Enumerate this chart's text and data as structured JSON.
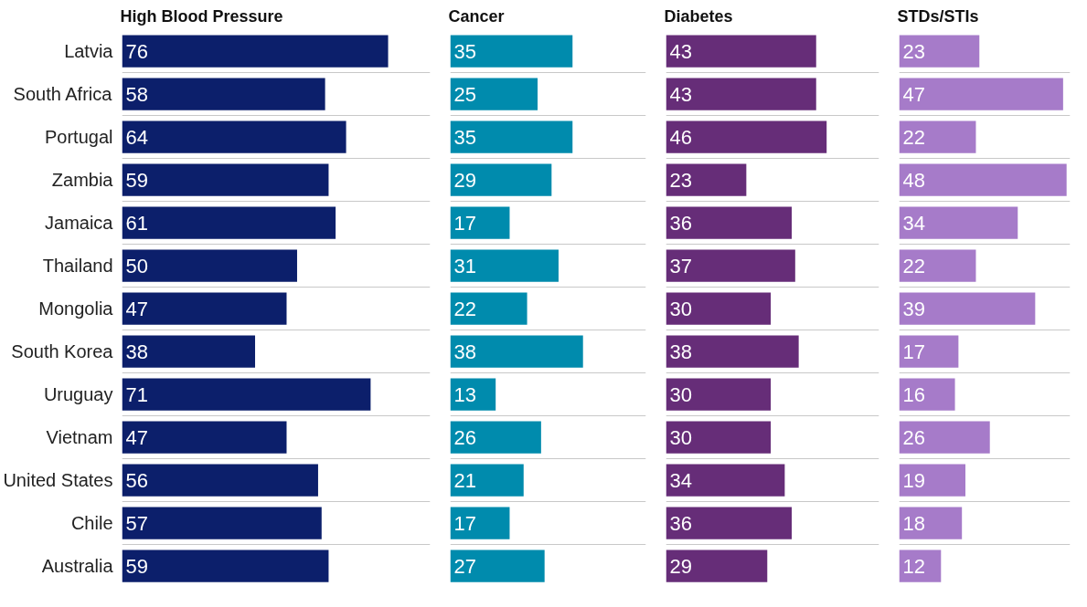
{
  "chart_data": [
    {
      "type": "bar",
      "orientation": "horizontal",
      "title": "High Blood Pressure",
      "categories": [
        "Latvia",
        "South Africa",
        "Portugal",
        "Zambia",
        "Jamaica",
        "Thailand",
        "Mongolia",
        "South Korea",
        "Uruguay",
        "Vietnam",
        "United States",
        "Chile",
        "Australia"
      ],
      "values": [
        76,
        58,
        64,
        59,
        61,
        50,
        47,
        38,
        71,
        47,
        56,
        57,
        59
      ],
      "color": "#0c1f6b",
      "xlim": [
        0,
        88
      ],
      "data_labels": true,
      "grid": "y",
      "tick_labels": "y"
    },
    {
      "type": "bar",
      "orientation": "horizontal",
      "title": "Cancer",
      "categories": [
        "Latvia",
        "South Africa",
        "Portugal",
        "Zambia",
        "Jamaica",
        "Thailand",
        "Mongolia",
        "South Korea",
        "Uruguay",
        "Vietnam",
        "United States",
        "Chile",
        "Australia"
      ],
      "values": [
        35,
        25,
        35,
        29,
        17,
        31,
        22,
        38,
        13,
        26,
        21,
        17,
        27
      ],
      "color": "#008bad",
      "xlim": [
        0,
        56
      ],
      "data_labels": true,
      "grid": "y",
      "tick_labels": false
    },
    {
      "type": "bar",
      "orientation": "horizontal",
      "title": "Diabetes",
      "categories": [
        "Latvia",
        "South Africa",
        "Portugal",
        "Zambia",
        "Jamaica",
        "Thailand",
        "Mongolia",
        "South Korea",
        "Uruguay",
        "Vietnam",
        "United States",
        "Chile",
        "Australia"
      ],
      "values": [
        43,
        43,
        46,
        23,
        36,
        37,
        30,
        38,
        30,
        30,
        34,
        36,
        29
      ],
      "color": "#662d78",
      "xlim": [
        0,
        61
      ],
      "data_labels": true,
      "grid": "y",
      "tick_labels": false
    },
    {
      "type": "bar",
      "orientation": "horizontal",
      "title": "STDs/STIs",
      "categories": [
        "Latvia",
        "South Africa",
        "Portugal",
        "Zambia",
        "Jamaica",
        "Thailand",
        "Mongolia",
        "South Korea",
        "Uruguay",
        "Vietnam",
        "United States",
        "Chile",
        "Australia"
      ],
      "values": [
        23,
        47,
        22,
        48,
        34,
        22,
        39,
        17,
        16,
        26,
        19,
        18,
        12
      ],
      "color": "#a67bc9",
      "xlim": [
        0,
        49
      ],
      "data_labels": true,
      "grid": "y",
      "tick_labels": false
    }
  ]
}
